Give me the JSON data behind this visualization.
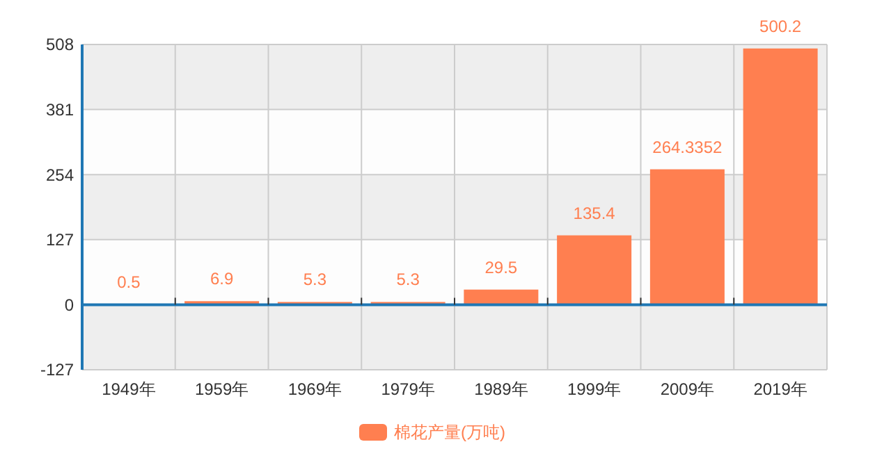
{
  "chart_data": {
    "type": "bar",
    "categories": [
      "1949年",
      "1959年",
      "1969年",
      "1979年",
      "1989年",
      "1999年",
      "2009年",
      "2019年"
    ],
    "series": [
      {
        "name": "棉花产量(万吨)",
        "color": "#ff7f50",
        "values": [
          0.5,
          6.9,
          5.3,
          5.3,
          29.5,
          135.4,
          264.3352,
          500.2
        ]
      }
    ],
    "ylim": [
      -127,
      508
    ],
    "yticks": [
      -127,
      0,
      127,
      254,
      381,
      508
    ],
    "grid": true,
    "ref_lines": [
      {
        "axis": "y",
        "value": 0,
        "color": "#1f77b4"
      }
    ],
    "legend": "bottom",
    "data_labels": true
  }
}
